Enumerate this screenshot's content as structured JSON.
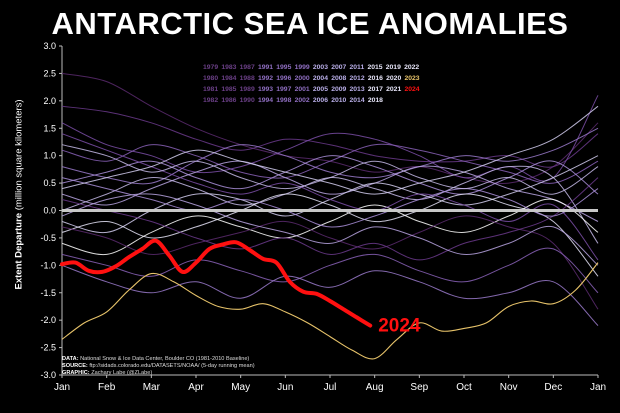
{
  "title": "ANTARCTIC SEA ICE ANOMALIES",
  "ylabel_bold": "Extent Departure",
  "ylabel_units": "(million square kilometers)",
  "notes": [
    {
      "label": "DATA:",
      "text": "National Snow & Ice Data Center, Boulder CO (1981-2010 Baseline)"
    },
    {
      "label": "SOURCE:",
      "text": "ftp://sidads.colorado.edu/DATASETS/NOAA/ (5-day running mean)"
    },
    {
      "label": "GRAPHIC:",
      "text": "Zachary Labe (@ZLabe)"
    }
  ],
  "colors": {
    "background": "#000000",
    "highlight_2024": "#ff1010",
    "year_2023": "#e7c36a",
    "baseline": "#c8c8c8"
  },
  "legend_rows": [
    [
      "1979",
      "1983",
      "1987",
      "1991",
      "1995",
      "1999",
      "2003",
      "2007",
      "2011",
      "2015",
      "2019",
      "2022"
    ],
    [
      "1980",
      "1984",
      "1988",
      "1992",
      "1996",
      "2000",
      "2004",
      "2008",
      "2012",
      "2016",
      "2020",
      "2023"
    ],
    [
      "1981",
      "1985",
      "1989",
      "1993",
      "1997",
      "2001",
      "2005",
      "2009",
      "2013",
      "2017",
      "2021",
      "2024"
    ],
    [
      "1982",
      "1986",
      "1990",
      "1994",
      "1998",
      "2002",
      "2006",
      "2010",
      "2014",
      "2018"
    ]
  ],
  "chart_data": {
    "type": "line",
    "title": "ANTARCTIC SEA ICE ANOMALIES",
    "xlabel": "",
    "ylabel": "Extent Departure (million square kilometers)",
    "x_ticks": [
      "Jan",
      "Feb",
      "Mar",
      "Apr",
      "May",
      "Jun",
      "Jul",
      "Aug",
      "Sep",
      "Oct",
      "Nov",
      "Dec",
      "Jan"
    ],
    "y_ticks": [
      3.0,
      2.5,
      2.0,
      1.5,
      1.0,
      0.5,
      0.0,
      -0.5,
      -1.0,
      -1.5,
      -2.0,
      -2.5,
      -3.0
    ],
    "ylim": [
      -3.0,
      3.0
    ],
    "x_unit": "month",
    "xlim": [
      0,
      12
    ],
    "grid": false,
    "baseline": 0.0,
    "highlight": {
      "name": "2024",
      "x": [
        0,
        0.3,
        0.6,
        0.9,
        1.2,
        1.5,
        1.8,
        2.1,
        2.4,
        2.7,
        3.0,
        3.3,
        3.6,
        3.9,
        4.2,
        4.5,
        4.8,
        5.1,
        5.4,
        5.7,
        6.0,
        6.3,
        6.6,
        6.9
      ],
      "y": [
        -0.98,
        -0.95,
        -1.1,
        -1.12,
        -1.02,
        -0.85,
        -0.7,
        -0.55,
        -0.82,
        -1.12,
        -0.95,
        -0.7,
        -0.62,
        -0.58,
        -0.72,
        -0.88,
        -0.95,
        -1.3,
        -1.48,
        -1.52,
        -1.65,
        -1.8,
        -1.95,
        -2.1
      ],
      "label": "2024"
    },
    "series_2023": {
      "name": "2023",
      "x": [
        0,
        0.5,
        1,
        1.5,
        2,
        2.5,
        3,
        3.5,
        4,
        4.5,
        5,
        5.5,
        6,
        6.5,
        7,
        7.5,
        8,
        8.5,
        9,
        9.5,
        10,
        10.5,
        11,
        11.5,
        12
      ],
      "y": [
        -2.35,
        -2.05,
        -1.85,
        -1.45,
        -1.15,
        -1.3,
        -1.55,
        -1.75,
        -1.8,
        -1.7,
        -1.85,
        -2.05,
        -2.3,
        -2.55,
        -2.7,
        -2.35,
        -2.05,
        -2.2,
        -2.15,
        -2.05,
        -1.75,
        -1.65,
        -1.7,
        -1.45,
        -0.95
      ]
    },
    "other_years": [
      {
        "y": [
          2.5,
          2.35,
          1.9,
          1.5,
          1.2,
          1.0,
          0.9,
          0.7,
          0.8,
          0.6,
          0.5,
          0.8,
          1.6
        ]
      },
      {
        "y": [
          1.9,
          1.8,
          1.6,
          1.3,
          1.1,
          1.3,
          1.2,
          1.0,
          0.9,
          0.9,
          1.0,
          0.8,
          1.4
        ]
      },
      {
        "y": [
          1.6,
          1.2,
          1.0,
          0.7,
          0.8,
          1.1,
          1.4,
          1.3,
          1.0,
          0.6,
          0.8,
          0.6,
          2.1
        ]
      },
      {
        "y": [
          1.1,
          0.9,
          1.2,
          1.0,
          0.7,
          0.6,
          0.9,
          1.2,
          1.1,
          0.9,
          0.7,
          0.5,
          0.9
        ]
      },
      {
        "y": [
          0.8,
          0.6,
          0.5,
          0.9,
          1.2,
          1.0,
          0.7,
          0.6,
          0.8,
          1.0,
          0.9,
          1.1,
          1.5
        ]
      },
      {
        "y": [
          0.5,
          0.7,
          0.9,
          0.6,
          0.4,
          0.7,
          1.0,
          0.8,
          0.5,
          0.3,
          0.6,
          0.9,
          0.3
        ]
      },
      {
        "y": [
          0.3,
          0.1,
          0.4,
          0.7,
          0.9,
          0.6,
          0.3,
          0.5,
          0.8,
          0.7,
          0.4,
          0.2,
          -0.2
        ]
      },
      {
        "y": [
          0.0,
          0.3,
          0.6,
          0.4,
          0.1,
          0.3,
          0.6,
          0.4,
          0.2,
          0.5,
          0.8,
          0.6,
          -0.6
        ]
      },
      {
        "y": [
          -0.2,
          -0.4,
          0.0,
          0.3,
          0.2,
          -0.1,
          0.2,
          0.5,
          0.3,
          0.1,
          0.3,
          0.6,
          1.0
        ]
      },
      {
        "y": [
          -0.4,
          -0.2,
          -0.5,
          -0.3,
          0.0,
          0.3,
          0.1,
          -0.2,
          0.0,
          0.3,
          0.1,
          -0.2,
          -1.2
        ]
      },
      {
        "y": [
          -0.6,
          -0.8,
          -0.4,
          -0.1,
          -0.3,
          -0.5,
          -0.2,
          0.1,
          -0.2,
          -0.4,
          -0.1,
          0.2,
          -0.4
        ]
      },
      {
        "y": [
          -0.3,
          -0.5,
          -0.8,
          -0.6,
          -0.4,
          -0.2,
          -0.5,
          -0.7,
          -0.4,
          -0.1,
          -0.3,
          -0.6,
          -1.8
        ]
      },
      {
        "y": [
          0.2,
          0.0,
          -0.2,
          -0.5,
          -0.7,
          -0.5,
          -0.8,
          -0.6,
          -0.9,
          -0.6,
          -0.4,
          -0.1,
          0.6
        ]
      },
      {
        "y": [
          1.4,
          1.1,
          0.8,
          0.5,
          0.3,
          0.5,
          0.2,
          0.0,
          0.3,
          0.1,
          -0.2,
          0.1,
          -0.9
        ]
      },
      {
        "y": [
          -0.8,
          -1.0,
          -1.2,
          -0.9,
          -1.1,
          -1.3,
          -1.0,
          -0.8,
          -1.1,
          -1.3,
          -1.0,
          -0.7,
          -1.5
        ]
      },
      {
        "y": [
          -1.0,
          -1.3,
          -1.5,
          -1.3,
          -1.6,
          -1.2,
          -1.4,
          -1.1,
          -1.3,
          -1.6,
          -1.5,
          -1.3,
          -2.1
        ]
      },
      {
        "y": [
          0.6,
          0.4,
          0.2,
          0.0,
          0.2,
          0.0,
          -0.3,
          -0.1,
          0.2,
          0.4,
          0.2,
          -0.1,
          0.4
        ]
      },
      {
        "y": [
          -0.1,
          0.2,
          0.3,
          0.1,
          -0.2,
          -0.4,
          -0.6,
          -0.3,
          -0.5,
          -0.8,
          -0.6,
          -0.3,
          -1.0
        ]
      },
      {
        "y": [
          1.2,
          1.0,
          0.7,
          0.9,
          0.6,
          0.4,
          0.6,
          0.9,
          0.6,
          0.4,
          0.6,
          0.3,
          0.8
        ]
      },
      {
        "y": [
          0.4,
          0.6,
          0.8,
          1.1,
          0.9,
          0.7,
          0.5,
          0.3,
          0.5,
          0.7,
          1.0,
          1.3,
          1.9
        ]
      }
    ]
  }
}
